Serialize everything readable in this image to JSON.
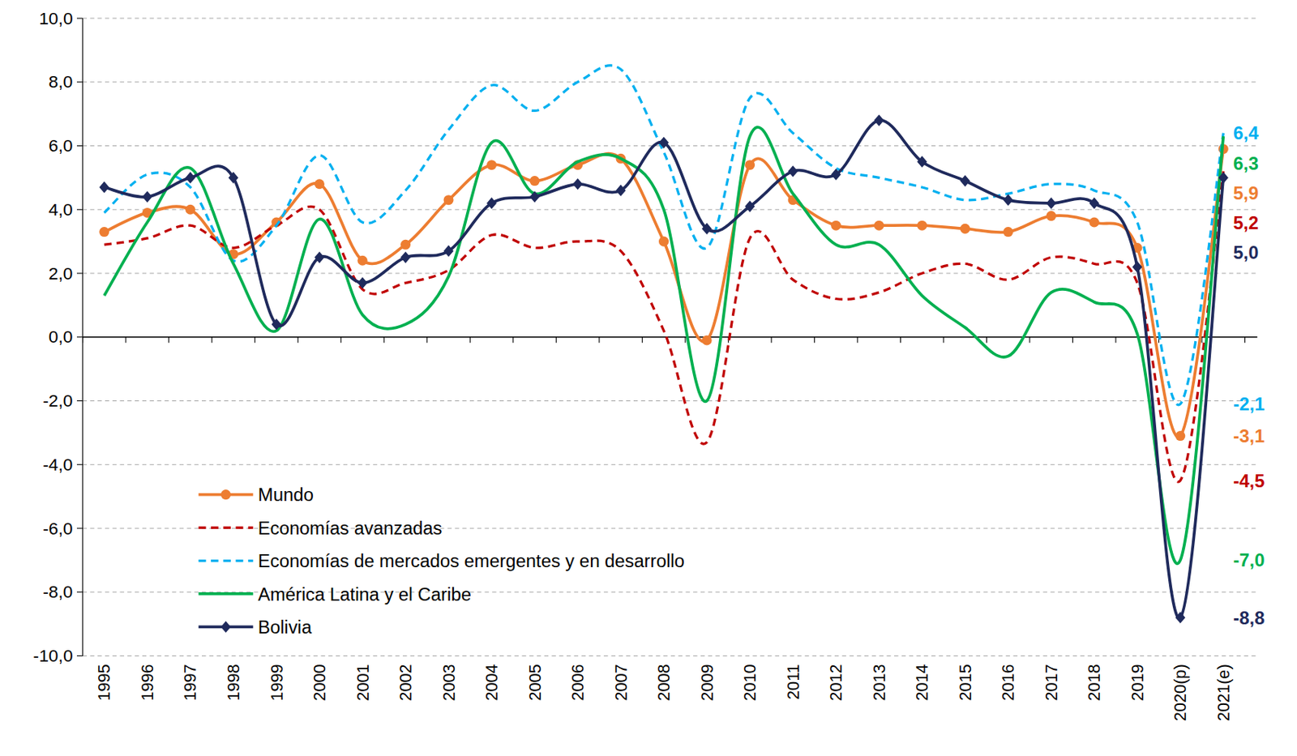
{
  "chart_data": {
    "type": "line",
    "categories": [
      "1995",
      "1996",
      "1997",
      "1998",
      "1999",
      "2000",
      "2001",
      "2002",
      "2003",
      "2004",
      "2005",
      "2006",
      "2007",
      "2008",
      "2009",
      "2010",
      "2011",
      "2012",
      "2013",
      "2014",
      "2015",
      "2016",
      "2017",
      "2018",
      "2019",
      "2020(p)",
      "2021(e)"
    ],
    "series": [
      {
        "name": "Mundo",
        "color": "#ed7d31",
        "line_style": "solid",
        "marker": "circle",
        "values": [
          3.3,
          3.9,
          4.0,
          2.6,
          3.6,
          4.8,
          2.4,
          2.9,
          4.3,
          5.4,
          4.9,
          5.4,
          5.6,
          3.0,
          -0.1,
          5.4,
          4.3,
          3.5,
          3.5,
          3.5,
          3.4,
          3.3,
          3.8,
          3.6,
          2.8,
          -3.1,
          5.9
        ],
        "value_labels": [
          null,
          null,
          null,
          null,
          null,
          null,
          null,
          null,
          null,
          null,
          null,
          null,
          null,
          null,
          null,
          null,
          null,
          null,
          null,
          null,
          null,
          null,
          null,
          null,
          null,
          "-3,1",
          "5,9"
        ]
      },
      {
        "name": "Economías avanzadas",
        "color": "#c00000",
        "line_style": "dashed",
        "marker": "none",
        "values": [
          2.9,
          3.1,
          3.5,
          2.8,
          3.5,
          4.0,
          1.5,
          1.7,
          2.1,
          3.2,
          2.8,
          3.0,
          2.7,
          0.2,
          -3.3,
          3.1,
          1.8,
          1.2,
          1.4,
          2.0,
          2.3,
          1.8,
          2.5,
          2.3,
          1.7,
          -4.5,
          5.2
        ],
        "value_labels": [
          null,
          null,
          null,
          null,
          null,
          null,
          null,
          null,
          null,
          null,
          null,
          null,
          null,
          null,
          null,
          null,
          null,
          null,
          null,
          null,
          null,
          null,
          null,
          null,
          null,
          "-4,5",
          "5,2"
        ]
      },
      {
        "name": "Economías de mercados emergentes y en desarrollo",
        "color": "#00b0f0",
        "line_style": "dashed",
        "marker": "none",
        "values": [
          3.9,
          5.1,
          4.7,
          2.4,
          3.5,
          5.7,
          3.6,
          4.6,
          6.5,
          7.9,
          7.1,
          8.0,
          8.4,
          5.8,
          2.8,
          7.5,
          6.4,
          5.3,
          5.0,
          4.7,
          4.3,
          4.5,
          4.8,
          4.6,
          3.6,
          -2.1,
          6.4
        ],
        "value_labels": [
          null,
          null,
          null,
          null,
          null,
          null,
          null,
          null,
          null,
          null,
          null,
          null,
          null,
          null,
          null,
          null,
          null,
          null,
          null,
          null,
          null,
          null,
          null,
          null,
          null,
          "-2,1",
          "6,4"
        ]
      },
      {
        "name": "América Latina y el Caribe",
        "color": "#00b050",
        "line_style": "solid",
        "marker": "none",
        "values": [
          1.3,
          3.6,
          5.3,
          2.3,
          0.2,
          3.7,
          0.7,
          0.4,
          1.9,
          6.1,
          4.5,
          5.5,
          5.6,
          4.0,
          -2.0,
          6.3,
          4.5,
          2.9,
          2.9,
          1.3,
          0.3,
          -0.6,
          1.4,
          1.1,
          0.1,
          -7.0,
          6.3
        ],
        "value_labels": [
          null,
          null,
          null,
          null,
          null,
          null,
          null,
          null,
          null,
          null,
          null,
          null,
          null,
          null,
          null,
          null,
          null,
          null,
          null,
          null,
          null,
          null,
          null,
          null,
          null,
          "-7,0",
          "6,3"
        ]
      },
      {
        "name": "Bolivia",
        "color": "#1f2a5c",
        "line_style": "solid",
        "marker": "diamond",
        "values": [
          4.7,
          4.4,
          5.0,
          5.0,
          0.4,
          2.5,
          1.7,
          2.5,
          2.7,
          4.2,
          4.4,
          4.8,
          4.6,
          6.1,
          3.4,
          4.1,
          5.2,
          5.1,
          6.8,
          5.5,
          4.9,
          4.3,
          4.2,
          4.2,
          2.2,
          -8.8,
          5.0
        ],
        "value_labels": [
          null,
          null,
          null,
          null,
          null,
          null,
          null,
          null,
          null,
          null,
          null,
          null,
          null,
          null,
          null,
          null,
          null,
          null,
          null,
          null,
          null,
          null,
          null,
          null,
          null,
          "-8,8",
          "5,0"
        ]
      }
    ],
    "ylim": [
      -10,
      10
    ],
    "yticks": [
      {
        "value": -10,
        "label": "-10,0"
      },
      {
        "value": -8,
        "label": "-8,0"
      },
      {
        "value": -6,
        "label": "-6,0"
      },
      {
        "value": -4,
        "label": "-4,0"
      },
      {
        "value": -2,
        "label": "-2,0"
      },
      {
        "value": 0,
        "label": "0,0"
      },
      {
        "value": 2,
        "label": "2,0"
      },
      {
        "value": 4,
        "label": "4,0"
      },
      {
        "value": 6,
        "label": "6,0"
      },
      {
        "value": 8,
        "label": "8,0"
      },
      {
        "value": 10,
        "label": "10,0"
      }
    ],
    "grid": true,
    "legend": "lower left",
    "data_labels": true
  }
}
